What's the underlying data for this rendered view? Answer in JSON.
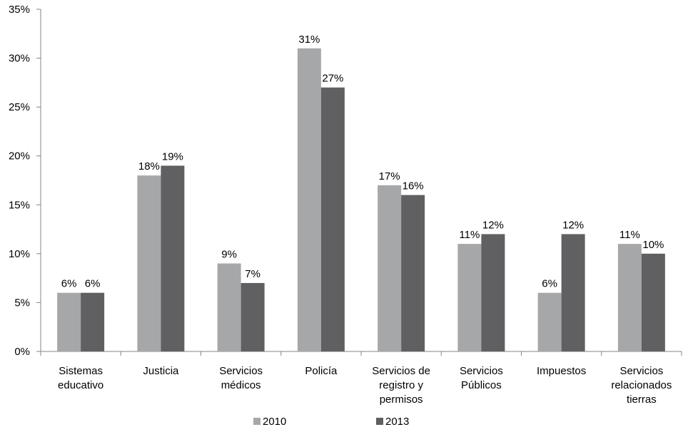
{
  "chart_data": {
    "type": "bar",
    "categories": [
      [
        "Sistemas",
        "educativo"
      ],
      [
        "Justicia"
      ],
      [
        "Servicios",
        "médicos"
      ],
      [
        "Policía"
      ],
      [
        "Servicios de",
        "registro y",
        "permisos"
      ],
      [
        "Servicios",
        "Públicos"
      ],
      [
        "Impuestos"
      ],
      [
        "Servicios",
        "relacionados",
        "tierras"
      ]
    ],
    "series": [
      {
        "name": "2010",
        "color": "#a6a7a9",
        "values": [
          6,
          18,
          9,
          31,
          17,
          11,
          6,
          11
        ],
        "labels": [
          "6%",
          "18%",
          "9%",
          "31%",
          "17%",
          "11%",
          "6%",
          "11%"
        ]
      },
      {
        "name": "2013",
        "color": "#606062",
        "values": [
          6,
          19,
          7,
          27,
          16,
          12,
          12,
          10
        ],
        "labels": [
          "6%",
          "19%",
          "7%",
          "27%",
          "16%",
          "12%",
          "12%",
          "10%"
        ]
      }
    ],
    "ylim": [
      0,
      35
    ],
    "yticks": [
      0,
      5,
      10,
      15,
      20,
      25,
      30,
      35
    ],
    "ytick_labels": [
      "0%",
      "5%",
      "10%",
      "15%",
      "20%",
      "25%",
      "30%",
      "35%"
    ],
    "grid": false,
    "legend_position": "bottom"
  }
}
